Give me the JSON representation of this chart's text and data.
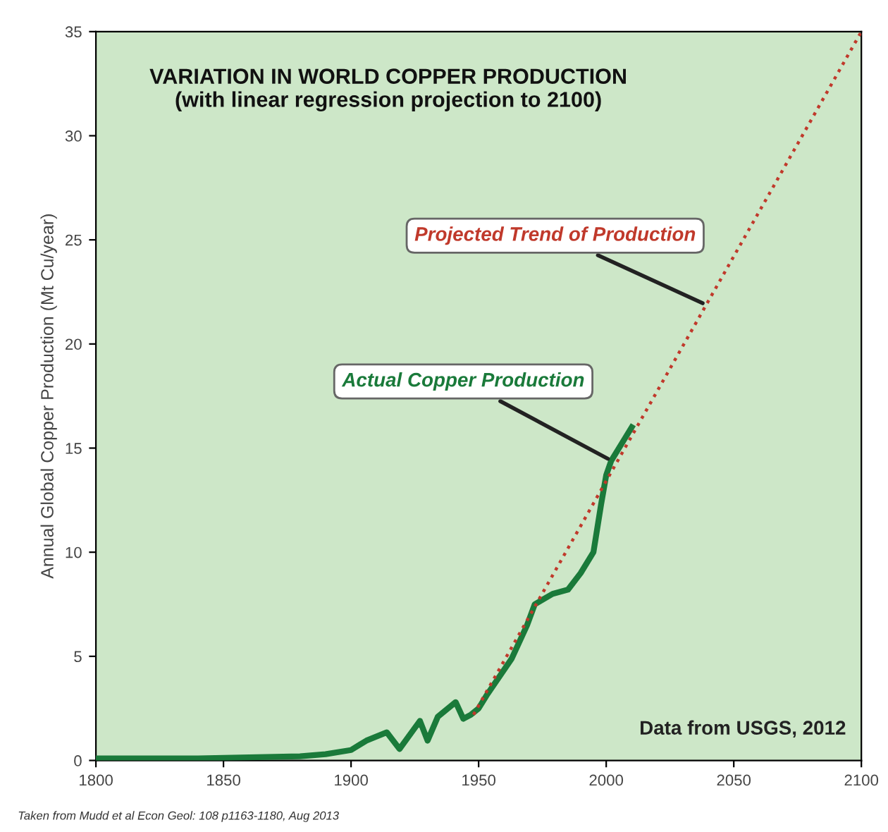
{
  "chart_data": {
    "type": "line",
    "title": "VARIATION IN WORLD COPPER PRODUCTION\n(with linear regression projection to 2100)",
    "ylabel": "Annual Global Copper Production (Mt Cu/year)",
    "xlim": [
      1800,
      2100
    ],
    "xticks": [
      1800,
      1850,
      1900,
      1950,
      2000,
      2050,
      2100
    ],
    "ylim": [
      0,
      35
    ],
    "yticks": [
      0,
      5,
      10,
      15,
      20,
      25,
      30,
      35
    ],
    "grid": false,
    "legend": false,
    "marker": "none",
    "series": [
      {
        "name": "Actual Copper Production",
        "color": "#1a7a3a",
        "line_style": "solid",
        "x": [
          1800,
          1820,
          1840,
          1860,
          1880,
          1890,
          1900,
          1906,
          1914,
          1919,
          1927,
          1930,
          1934,
          1941,
          1944,
          1947,
          1950,
          1953,
          1963,
          1969,
          1972,
          1979,
          1985,
          1990,
          1995,
          1998,
          2000,
          2002,
          2006,
          2010
        ],
        "values": [
          0.1,
          0.1,
          0.1,
          0.15,
          0.2,
          0.3,
          0.5,
          0.95,
          1.35,
          0.55,
          1.9,
          0.95,
          2.1,
          2.8,
          2.0,
          2.2,
          2.5,
          3.1,
          4.9,
          6.5,
          7.5,
          8.0,
          8.2,
          9.0,
          10.0,
          12.3,
          13.7,
          14.4,
          15.2,
          16.0
        ]
      },
      {
        "name": "Projected Trend of Production",
        "color": "#c0392b",
        "line_style": "dotted",
        "x": [
          1948,
          2100
        ],
        "values": [
          2.2,
          35
        ]
      }
    ],
    "annotations": [
      "Data from USGS, 2012",
      "Taken from Mudd et al Econ Geol: 108 p1163-1180, Aug 2013"
    ]
  }
}
